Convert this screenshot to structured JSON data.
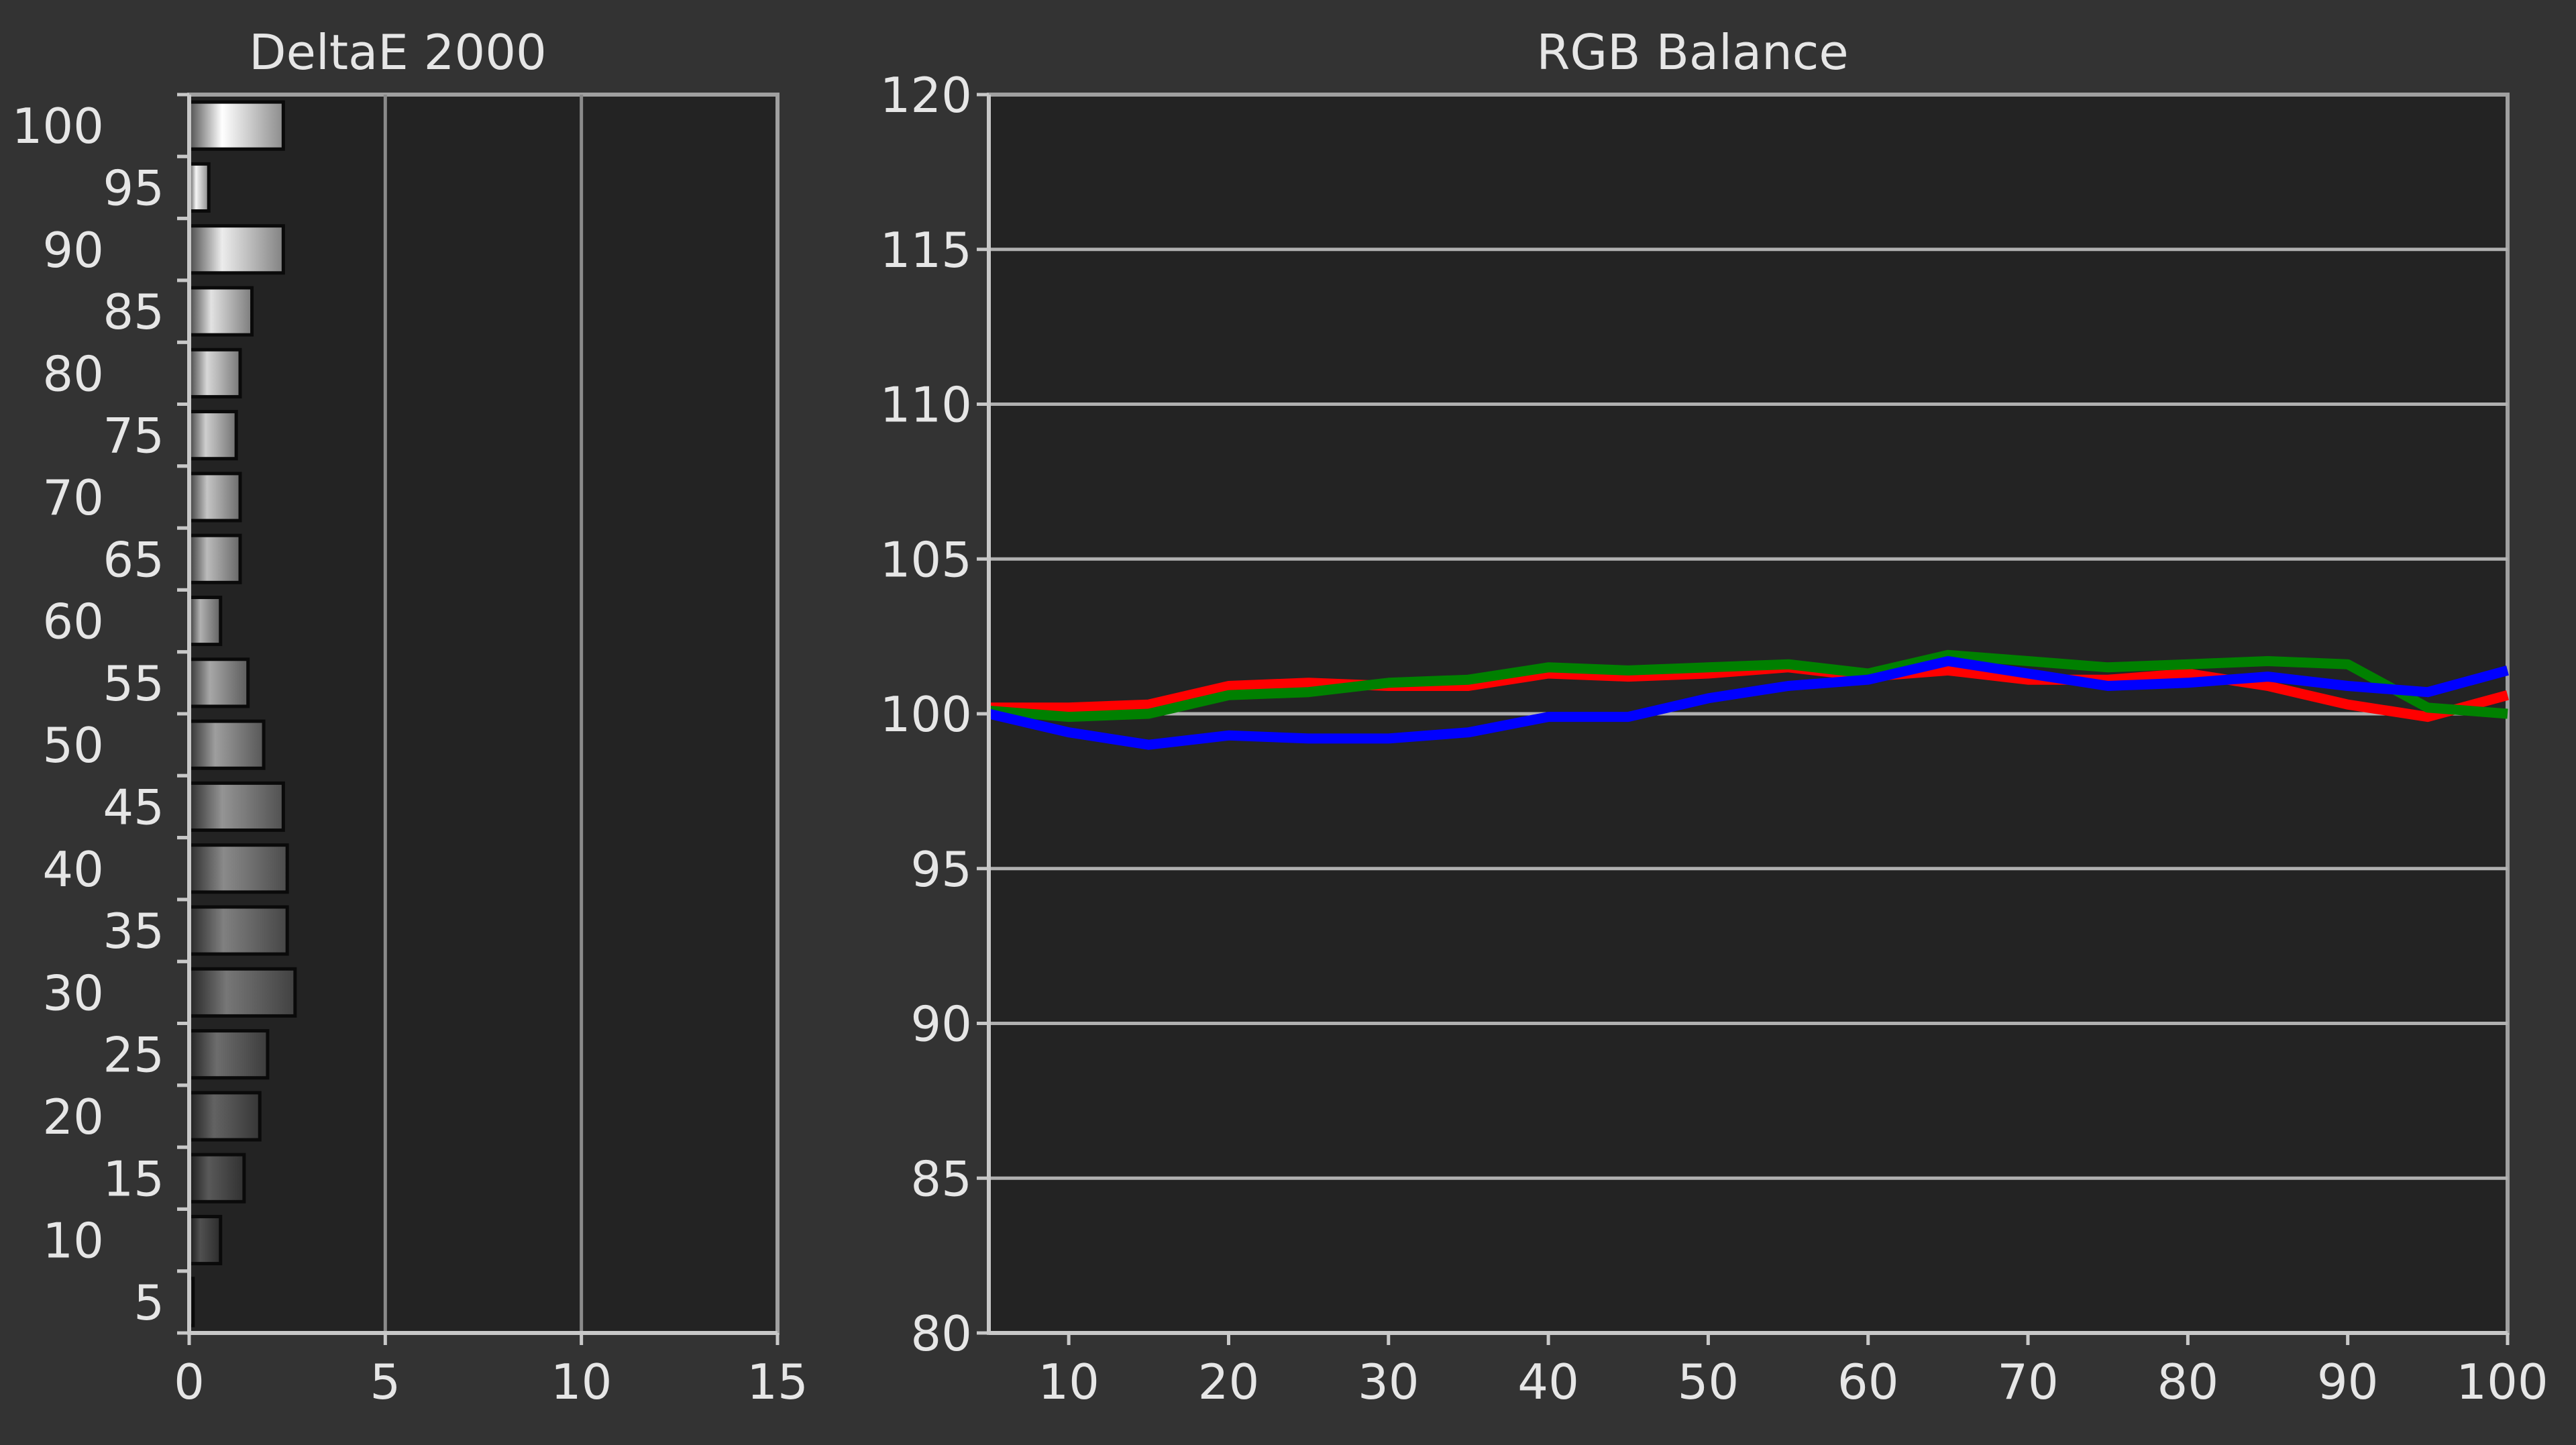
{
  "charts": {
    "deltae": {
      "title": "DeltaE 2000",
      "x_ticks": [
        "0",
        "5",
        "10",
        "15"
      ],
      "y_ticks": [
        "100",
        "95",
        "90",
        "85",
        "80",
        "75",
        "70",
        "65",
        "60",
        "55",
        "50",
        "45",
        "40",
        "35",
        "30",
        "25",
        "20",
        "15",
        "10",
        "5"
      ]
    },
    "rgb": {
      "title": "RGB Balance",
      "x_ticks": [
        "10",
        "20",
        "30",
        "40",
        "50",
        "60",
        "70",
        "80",
        "90",
        "100"
      ],
      "y_ticks": [
        "120",
        "115",
        "110",
        "105",
        "100",
        "95",
        "90",
        "85",
        "80"
      ]
    }
  },
  "chart_data": [
    {
      "type": "bar",
      "orientation": "horizontal",
      "title": "DeltaE 2000",
      "categories": [
        100,
        95,
        90,
        85,
        80,
        75,
        70,
        65,
        60,
        55,
        50,
        45,
        40,
        35,
        30,
        25,
        20,
        15,
        10,
        5
      ],
      "values": [
        2.4,
        0.5,
        2.4,
        1.6,
        1.3,
        1.2,
        1.3,
        1.3,
        0.8,
        1.5,
        1.9,
        2.4,
        2.5,
        2.5,
        2.7,
        2.0,
        1.8,
        1.4,
        0.8,
        0.1
      ],
      "xlim": [
        0,
        15
      ],
      "grid": true
    },
    {
      "type": "line",
      "title": "RGB Balance",
      "xlim": [
        5,
        100
      ],
      "ylim": [
        80,
        120
      ],
      "grid": true,
      "series": [
        {
          "color": "#ff0000",
          "x": [
            5,
            10,
            15,
            20,
            25,
            30,
            35,
            40,
            45,
            50,
            55,
            60,
            65,
            70,
            75,
            80,
            85,
            90,
            95,
            100
          ],
          "y": [
            100.2,
            100.2,
            100.3,
            100.9,
            101.0,
            100.9,
            100.9,
            101.3,
            101.2,
            101.3,
            101.5,
            101.2,
            101.4,
            101.1,
            101.1,
            101.3,
            100.9,
            100.3,
            99.9,
            100.6
          ]
        },
        {
          "color": "#008000",
          "x": [
            5,
            10,
            15,
            20,
            25,
            30,
            35,
            40,
            45,
            50,
            55,
            60,
            65,
            70,
            75,
            80,
            85,
            90,
            95,
            100
          ],
          "y": [
            100.1,
            99.9,
            100.0,
            100.6,
            100.7,
            101.0,
            101.1,
            101.5,
            101.4,
            101.5,
            101.6,
            101.3,
            101.9,
            101.7,
            101.5,
            101.6,
            101.7,
            101.6,
            100.2,
            100.0
          ]
        },
        {
          "color": "#0000ff",
          "x": [
            5,
            10,
            15,
            20,
            25,
            30,
            35,
            40,
            45,
            50,
            55,
            60,
            65,
            70,
            75,
            80,
            85,
            90,
            95,
            100
          ],
          "y": [
            100.0,
            99.4,
            99.0,
            99.3,
            99.2,
            99.2,
            99.4,
            99.9,
            99.9,
            100.5,
            100.9,
            101.1,
            101.7,
            101.3,
            100.9,
            101.0,
            101.2,
            100.9,
            100.7,
            101.4
          ]
        }
      ]
    }
  ]
}
